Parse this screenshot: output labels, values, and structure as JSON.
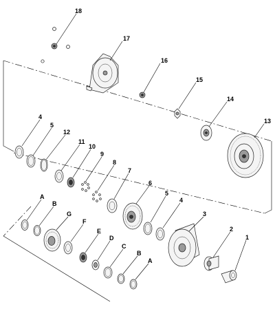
{
  "diagram": {
    "callouts": [
      {
        "id": "18",
        "label": "18"
      },
      {
        "id": "17",
        "label": "17"
      },
      {
        "id": "16",
        "label": "16"
      },
      {
        "id": "15",
        "label": "15"
      },
      {
        "id": "14",
        "label": "14"
      },
      {
        "id": "13",
        "label": "13"
      },
      {
        "id": "4a",
        "label": "4"
      },
      {
        "id": "5a",
        "label": "5"
      },
      {
        "id": "12",
        "label": "12"
      },
      {
        "id": "11",
        "label": "11"
      },
      {
        "id": "10",
        "label": "10"
      },
      {
        "id": "9",
        "label": "9"
      },
      {
        "id": "8",
        "label": "8"
      },
      {
        "id": "7",
        "label": "7"
      },
      {
        "id": "6",
        "label": "6"
      },
      {
        "id": "5b",
        "label": "5"
      },
      {
        "id": "4b",
        "label": "4"
      },
      {
        "id": "3",
        "label": "3"
      },
      {
        "id": "2",
        "label": "2"
      },
      {
        "id": "1",
        "label": "1"
      },
      {
        "id": "Aa",
        "label": "A"
      },
      {
        "id": "Ba",
        "label": "B"
      },
      {
        "id": "G",
        "label": "G"
      },
      {
        "id": "F",
        "label": "F"
      },
      {
        "id": "E",
        "label": "E"
      },
      {
        "id": "D",
        "label": "D"
      },
      {
        "id": "C",
        "label": "C"
      },
      {
        "id": "Bb",
        "label": "B"
      },
      {
        "id": "Ab",
        "label": "A"
      }
    ]
  }
}
